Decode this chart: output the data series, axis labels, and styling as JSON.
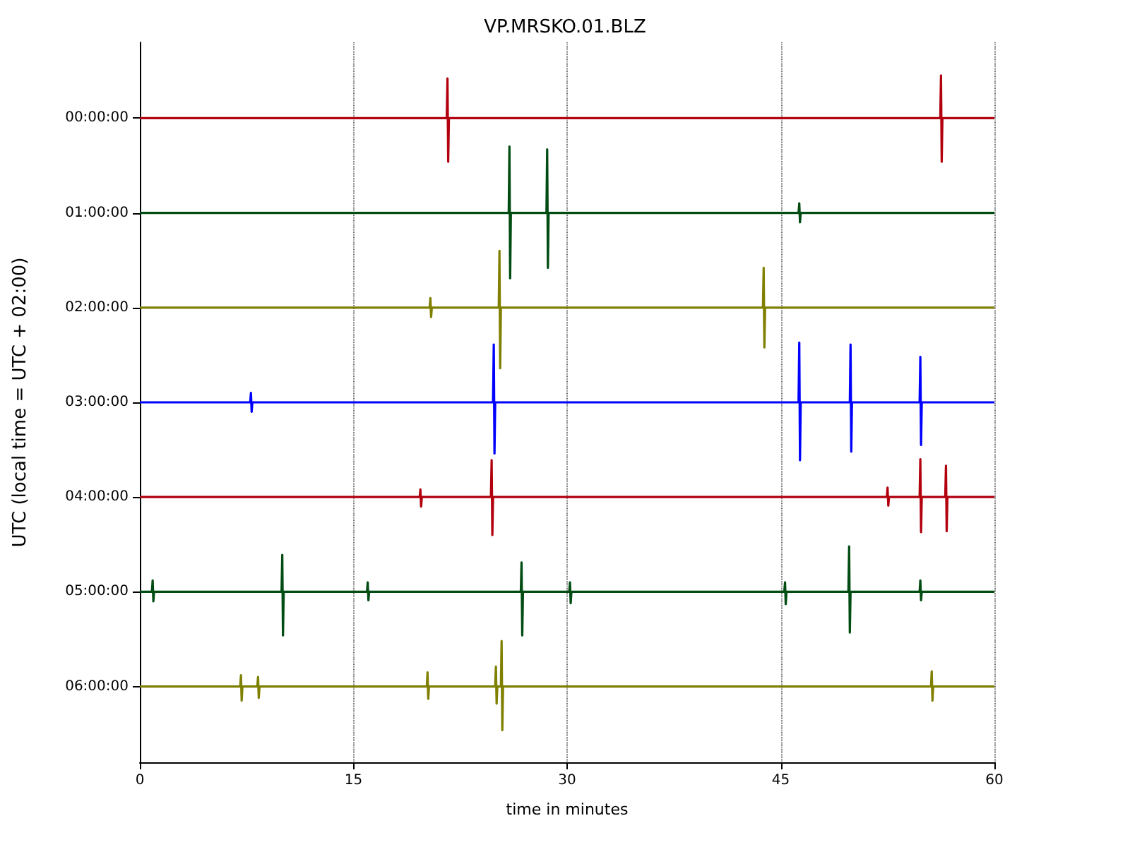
{
  "chart_data": {
    "type": "line",
    "title": "VP.MRSKO.01.BLZ",
    "xlabel": "time in minutes",
    "ylabel": "UTC (local time = UTC + 02:00)",
    "xlim": [
      0,
      60
    ],
    "xticks": [
      0,
      15,
      30,
      45,
      60
    ],
    "ylim": [
      6.8,
      -0.8
    ],
    "yticks": [
      {
        "value": 0,
        "label": "00:00:00"
      },
      {
        "value": 1,
        "label": "01:00:00"
      },
      {
        "value": 2,
        "label": "02:00:00"
      },
      {
        "value": 3,
        "label": "03:00:00"
      },
      {
        "value": 4,
        "label": "04:00:00"
      },
      {
        "value": 5,
        "label": "05:00:00"
      },
      {
        "value": 6,
        "label": "06:00:00"
      }
    ],
    "grid": "x",
    "marker": "none",
    "line_style": "solid",
    "series": [
      {
        "color": "#b2000e",
        "x": [
          0,
          21.55,
          21.6,
          21.65,
          21.7,
          56.2,
          56.25,
          56.3,
          56.35,
          60
        ],
        "values": [
          0,
          0,
          -0.42,
          0.46,
          0,
          0,
          -0.45,
          0.46,
          0,
          0
        ]
      },
      {
        "color": "#004c12",
        "x": [
          0,
          25.9,
          25.95,
          26.0,
          26.05,
          28.55,
          28.6,
          28.65,
          28.7,
          46.25,
          46.3,
          46.35,
          46.4,
          60
        ],
        "values": [
          1,
          1,
          0.3,
          1.69,
          1,
          1,
          0.33,
          1.58,
          1,
          1,
          0.9,
          1.1,
          1,
          1
        ]
      },
      {
        "color": "#7f7f00",
        "x": [
          0,
          20.35,
          20.4,
          20.45,
          20.5,
          25.2,
          25.25,
          25.3,
          25.35,
          43.75,
          43.8,
          43.85,
          43.9,
          60
        ],
        "values": [
          2,
          2,
          1.9,
          2.1,
          2,
          2,
          1.4,
          2.64,
          2,
          2,
          1.58,
          2.42,
          2,
          2
        ]
      },
      {
        "color": "#0000ff",
        "x": [
          0,
          7.75,
          7.8,
          7.85,
          7.9,
          24.8,
          24.85,
          24.9,
          24.95,
          46.25,
          46.3,
          46.35,
          46.4,
          49.85,
          49.9,
          49.95,
          50.0,
          54.75,
          54.8,
          54.85,
          54.9,
          60
        ],
        "values": [
          3,
          3,
          2.9,
          3.1,
          3,
          3,
          2.39,
          3.54,
          3,
          3,
          2.37,
          3.61,
          3,
          3,
          2.39,
          3.52,
          3,
          3,
          2.52,
          3.45,
          3,
          3
        ]
      },
      {
        "color": "#b2000e",
        "x": [
          0,
          19.65,
          19.7,
          19.75,
          19.8,
          24.65,
          24.7,
          24.75,
          24.8,
          52.45,
          52.5,
          52.55,
          52.6,
          54.75,
          54.8,
          54.85,
          54.9,
          56.55,
          56.6,
          56.65,
          56.7,
          60
        ],
        "values": [
          4,
          4,
          3.92,
          4.1,
          4,
          4,
          3.61,
          4.4,
          4,
          4,
          3.9,
          4.09,
          4,
          4,
          3.6,
          4.37,
          4,
          4,
          3.67,
          4.36,
          4,
          4
        ]
      },
      {
        "color": "#004c12",
        "x": [
          0,
          0.85,
          0.9,
          0.95,
          1.0,
          9.95,
          10.0,
          10.05,
          10.1,
          15.95,
          16.0,
          16.05,
          16.1,
          26.75,
          26.8,
          26.85,
          26.9,
          30.15,
          30.2,
          30.25,
          30.3,
          45.25,
          45.3,
          45.35,
          45.4,
          49.75,
          49.8,
          49.85,
          49.9,
          54.75,
          54.8,
          54.85,
          54.9,
          60
        ],
        "values": [
          5,
          5,
          4.88,
          5.1,
          5,
          5,
          4.61,
          5.46,
          5,
          5,
          4.9,
          5.09,
          5,
          5,
          4.69,
          5.46,
          5,
          5,
          4.9,
          5.12,
          5,
          5,
          4.9,
          5.13,
          5,
          5,
          4.52,
          5.43,
          5,
          5,
          4.88,
          5.09,
          5,
          5
        ]
      },
      {
        "color": "#7f7f00",
        "x": [
          0,
          7.05,
          7.1,
          7.15,
          7.2,
          8.25,
          8.3,
          8.35,
          8.4,
          20.15,
          20.2,
          20.25,
          20.3,
          24.95,
          25.0,
          25.05,
          25.1,
          25.35,
          25.4,
          25.45,
          25.5,
          55.55,
          55.6,
          55.65,
          55.7,
          60
        ],
        "values": [
          6,
          6,
          5.88,
          6.15,
          6,
          6,
          5.9,
          6.12,
          6,
          6,
          5.85,
          6.13,
          6,
          6,
          5.79,
          6.18,
          6,
          6,
          5.52,
          6.46,
          6,
          6,
          5.84,
          6.15,
          6,
          6
        ]
      }
    ]
  }
}
